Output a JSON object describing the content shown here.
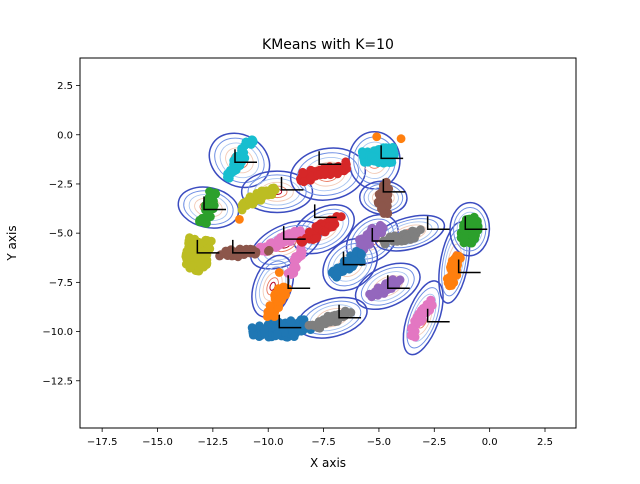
{
  "chart_data": {
    "type": "scatter",
    "title": "KMeans with K=10",
    "xlabel": "X axis",
    "ylabel": "Y axis",
    "xlim": [
      -18.5,
      3.9
    ],
    "ylim": [
      -14.9,
      3.9
    ],
    "xticks": [
      -17.5,
      -15.0,
      -12.5,
      -10.0,
      -7.5,
      -5.0,
      -2.5,
      0.0,
      2.5
    ],
    "yticks": [
      -12.5,
      -10.0,
      -7.5,
      -5.0,
      -2.5,
      0.0,
      2.5
    ],
    "colors": {
      "tab_blue": "#1f77b4",
      "tab_orange": "#ff7f0e",
      "tab_green": "#2ca02c",
      "tab_red": "#d62728",
      "tab_purple": "#9467bd",
      "tab_brown": "#8c564b",
      "tab_pink": "#e377c2",
      "tab_gray": "#7f7f7f",
      "tab_olive": "#bcbd22",
      "tab_cyan": "#17becf"
    },
    "clusters": [
      {
        "name": "cluster-blue-1",
        "color": "#1f77b4",
        "center": [
          -9.4,
          -9.9
        ],
        "length": 2.6,
        "width": 0.9,
        "angle": 8,
        "n": 90
      },
      {
        "name": "cluster-gray-1",
        "color": "#7f7f7f",
        "center": [
          -7.2,
          -9.4
        ],
        "length": 2.0,
        "width": 0.5,
        "angle": 20,
        "n": 50
      },
      {
        "name": "cluster-orange-1",
        "color": "#ff7f0e",
        "center": [
          -9.6,
          -8.4
        ],
        "length": 1.9,
        "width": 0.5,
        "angle": 65,
        "n": 45
      },
      {
        "name": "cluster-pink-1",
        "color": "#e377c2",
        "center": [
          -8.7,
          -6.4
        ],
        "length": 1.5,
        "width": 0.35,
        "angle": 65,
        "n": 30
      },
      {
        "name": "cluster-pink-2",
        "color": "#e377c2",
        "center": [
          -9.4,
          -5.4
        ],
        "length": 2.0,
        "width": 0.4,
        "angle": 25,
        "n": 45
      },
      {
        "name": "cluster-red-1",
        "color": "#d62728",
        "center": [
          -7.6,
          -4.8
        ],
        "length": 2.2,
        "width": 0.5,
        "angle": 35,
        "n": 55
      },
      {
        "name": "cluster-red-2",
        "color": "#d62728",
        "center": [
          -7.5,
          -1.9
        ],
        "length": 2.2,
        "width": 0.5,
        "angle": 15,
        "n": 55
      },
      {
        "name": "cluster-olive-1",
        "color": "#bcbd22",
        "center": [
          -13.2,
          -6.1
        ],
        "length": 1.6,
        "width": 1.0,
        "angle": 80,
        "n": 95
      },
      {
        "name": "cluster-brown-1",
        "color": "#8c564b",
        "center": [
          -11.2,
          -6.0
        ],
        "length": 2.5,
        "width": 0.4,
        "angle": 5,
        "n": 45
      },
      {
        "name": "cluster-green-1",
        "color": "#2ca02c",
        "center": [
          -12.7,
          -3.7
        ],
        "length": 1.6,
        "width": 0.45,
        "angle": 75,
        "n": 40
      },
      {
        "name": "cluster-olive-2",
        "color": "#bcbd22",
        "center": [
          -10.5,
          -3.2
        ],
        "length": 1.8,
        "width": 0.4,
        "angle": 30,
        "n": 40
      },
      {
        "name": "cluster-cyan-1",
        "color": "#17becf",
        "center": [
          -11.3,
          -1.2
        ],
        "length": 2.2,
        "width": 0.4,
        "angle": 60,
        "n": 45
      },
      {
        "name": "cluster-cyan-2",
        "color": "#17becf",
        "center": [
          -5.0,
          -1.1
        ],
        "length": 1.4,
        "width": 0.8,
        "angle": 10,
        "n": 90
      },
      {
        "name": "cluster-brown-2",
        "color": "#8c564b",
        "center": [
          -4.8,
          -3.2
        ],
        "length": 1.6,
        "width": 0.45,
        "angle": 88,
        "n": 40
      },
      {
        "name": "cluster-purple-1",
        "color": "#9467bd",
        "center": [
          -5.4,
          -5.2
        ],
        "length": 1.5,
        "width": 0.5,
        "angle": 45,
        "n": 45
      },
      {
        "name": "cluster-gray-2",
        "color": "#7f7f7f",
        "center": [
          -3.9,
          -5.2
        ],
        "length": 1.8,
        "width": 0.45,
        "angle": 20,
        "n": 45
      },
      {
        "name": "cluster-blue-2",
        "color": "#1f77b4",
        "center": [
          -6.4,
          -6.6
        ],
        "length": 1.6,
        "width": 0.55,
        "angle": 40,
        "n": 50
      },
      {
        "name": "cluster-purple-2",
        "color": "#9467bd",
        "center": [
          -4.6,
          -7.7
        ],
        "length": 1.8,
        "width": 0.4,
        "angle": 35,
        "n": 45
      },
      {
        "name": "cluster-pink-3",
        "color": "#e377c2",
        "center": [
          -3.1,
          -9.3
        ],
        "length": 2.0,
        "width": 0.4,
        "angle": 65,
        "n": 40
      },
      {
        "name": "cluster-green-2",
        "color": "#2ca02c",
        "center": [
          -0.9,
          -4.8
        ],
        "length": 1.4,
        "width": 0.75,
        "angle": 88,
        "n": 95
      },
      {
        "name": "cluster-orange-2",
        "color": "#ff7f0e",
        "center": [
          -1.6,
          -6.8
        ],
        "length": 1.8,
        "width": 0.4,
        "angle": 75,
        "n": 40
      }
    ],
    "stray_points": [
      {
        "color": "#ff7f0e",
        "x": -5.1,
        "y": -0.1
      },
      {
        "color": "#ff7f0e",
        "x": -4.0,
        "y": -0.2
      },
      {
        "color": "#ff7f0e",
        "x": -11.3,
        "y": -4.3
      },
      {
        "color": "#ff7f0e",
        "x": -9.5,
        "y": -7.0
      }
    ],
    "gaussian_components": [
      {
        "name": "contour-1",
        "center": [
          -11.3,
          -1.3
        ],
        "rx": 1.15,
        "ry": 1.6,
        "angle": 60
      },
      {
        "name": "contour-2",
        "center": [
          -12.7,
          -3.7
        ],
        "rx": 0.9,
        "ry": 1.55,
        "angle": 78
      },
      {
        "name": "contour-3",
        "center": [
          -9.6,
          -2.9
        ],
        "rx": 1.6,
        "ry": 1.05,
        "angle": 0
      },
      {
        "name": "contour-4",
        "center": [
          -7.3,
          -2.0
        ],
        "rx": 1.7,
        "ry": 1.3,
        "angle": 10
      },
      {
        "name": "contour-5",
        "center": [
          -7.5,
          -4.8
        ],
        "rx": 1.5,
        "ry": 1.05,
        "angle": 30
      },
      {
        "name": "contour-6",
        "center": [
          -5.2,
          -1.3
        ],
        "rx": 1.15,
        "ry": 1.45,
        "angle": 0
      },
      {
        "name": "contour-7",
        "center": [
          -4.8,
          -3.2
        ],
        "rx": 0.75,
        "ry": 1.2,
        "angle": 88
      },
      {
        "name": "contour-8",
        "center": [
          -9.2,
          -5.6
        ],
        "rx": 1.7,
        "ry": 1.0,
        "angle": 25
      },
      {
        "name": "contour-9",
        "center": [
          -5.3,
          -5.3
        ],
        "rx": 1.3,
        "ry": 1.05,
        "angle": 40
      },
      {
        "name": "contour-10",
        "center": [
          -3.6,
          -5.0
        ],
        "rx": 1.6,
        "ry": 0.8,
        "angle": 15
      },
      {
        "name": "contour-11",
        "center": [
          -6.3,
          -6.6
        ],
        "rx": 1.35,
        "ry": 1.15,
        "angle": 40
      },
      {
        "name": "contour-12",
        "center": [
          -9.8,
          -7.7
        ],
        "rx": 1.45,
        "ry": 0.95,
        "angle": 70
      },
      {
        "name": "contour-13",
        "center": [
          -4.6,
          -7.7
        ],
        "rx": 1.55,
        "ry": 1.0,
        "angle": 25
      },
      {
        "name": "contour-14",
        "center": [
          -7.1,
          -9.3
        ],
        "rx": 1.6,
        "ry": 0.95,
        "angle": 15
      },
      {
        "name": "contour-15",
        "center": [
          -3.0,
          -9.3
        ],
        "rx": 1.75,
        "ry": 0.8,
        "angle": 70
      },
      {
        "name": "contour-16",
        "center": [
          -1.6,
          -6.5
        ],
        "rx": 1.85,
        "ry": 0.7,
        "angle": 80
      },
      {
        "name": "contour-17",
        "center": [
          -0.9,
          -4.8
        ],
        "rx": 1.2,
        "ry": 1.0,
        "angle": 88
      }
    ],
    "corner_markers": [
      [
        -12.9,
        -3.8
      ],
      [
        -13.2,
        -6.0
      ],
      [
        -11.6,
        -6.0
      ],
      [
        -11.5,
        -1.4
      ],
      [
        -9.4,
        -2.8
      ],
      [
        -9.3,
        -5.3
      ],
      [
        -9.1,
        -7.8
      ],
      [
        -9.5,
        -9.8
      ],
      [
        -7.7,
        -1.5
      ],
      [
        -7.9,
        -4.2
      ],
      [
        -6.6,
        -6.6
      ],
      [
        -6.8,
        -9.3
      ],
      [
        -5.3,
        -5.4
      ],
      [
        -4.8,
        -2.9
      ],
      [
        -4.9,
        -1.2
      ],
      [
        -4.6,
        -7.8
      ],
      [
        -2.8,
        -4.8
      ],
      [
        -2.8,
        -9.5
      ],
      [
        -1.4,
        -7.0
      ],
      [
        -1.1,
        -4.8
      ]
    ]
  }
}
